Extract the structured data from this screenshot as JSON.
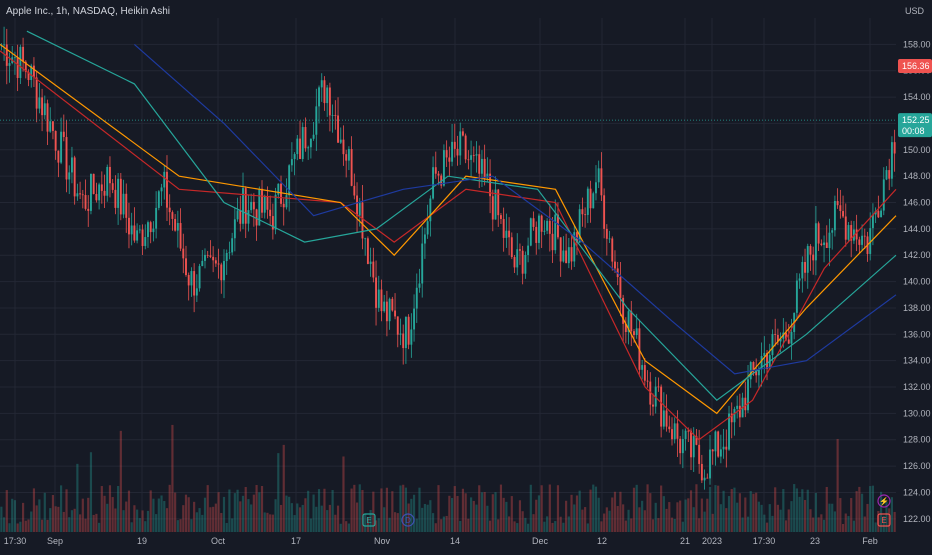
{
  "header": {
    "symbol": "Apple Inc.",
    "interval": "1h",
    "exchange": "NASDAQ",
    "style": "Heikin Ashi"
  },
  "axis": {
    "currency": "USD"
  },
  "colors": {
    "bg": "#161a25",
    "grid": "#232734",
    "up": "#26a69a",
    "down": "#ef5350",
    "ema_red": "#c62828",
    "ema_orange": "#ff9800",
    "ema_teal": "#26a69a",
    "ema_blue": "#1e3a9f"
  },
  "tags": {
    "high_price": "156.36",
    "last_price": "152.25",
    "countdown": "00:08"
  },
  "event_markers": [
    {
      "icon": "earnings-icon",
      "glyph": "E",
      "date": "Oct 27"
    },
    {
      "icon": "dividend-icon",
      "glyph": "D",
      "date": "Nov 4"
    },
    {
      "icon": "lightning-icon",
      "glyph": "⚡",
      "date": "Feb 2"
    },
    {
      "icon": "earnings-icon",
      "glyph": "E",
      "date": "Feb 2"
    }
  ],
  "chart_data": {
    "type": "candlestick",
    "title": "Apple Inc., 1h, NASDAQ, Heikin Ashi",
    "ylim": [
      121,
      160
    ],
    "y_ticks": [
      122,
      124,
      126,
      128,
      130,
      132,
      134,
      136,
      138,
      140,
      142,
      144,
      146,
      148,
      150,
      152,
      154,
      156,
      158
    ],
    "x_ticks": [
      "17:30",
      "Sep",
      "19",
      "Oct",
      "17",
      "Nov",
      "14",
      "Dec",
      "12",
      "21",
      "2023",
      "17:30",
      "23",
      "Feb"
    ],
    "close_path": [
      [
        "Sep",
        158
      ],
      [
        "12",
        156
      ],
      [
        "19",
        151
      ],
      [
        "23",
        146
      ],
      [
        "27",
        148
      ],
      [
        "Oct",
        143
      ],
      [
        "5",
        147
      ],
      [
        "10",
        140
      ],
      [
        "14",
        141
      ],
      [
        "17",
        146
      ],
      [
        "21",
        145
      ],
      [
        "25",
        150
      ],
      [
        "Oct 27",
        155
      ],
      [
        "Nov",
        148
      ],
      [
        "3",
        138
      ],
      [
        "Nov 4",
        136
      ],
      [
        "10",
        148
      ],
      [
        "14",
        150
      ],
      [
        "18",
        147
      ],
      [
        "Dec",
        141
      ],
      [
        "5",
        145
      ],
      [
        "8",
        142
      ],
      [
        "12",
        148
      ],
      [
        "15",
        138
      ],
      [
        "21",
        132
      ],
      [
        "28",
        128
      ],
      [
        "2023",
        126
      ],
      [
        "5",
        129
      ],
      [
        "17:30",
        134
      ],
      [
        "12",
        136
      ],
      [
        "23",
        143
      ],
      [
        "27",
        145
      ],
      [
        "Feb",
        143
      ],
      [
        "Feb 2",
        151
      ]
    ],
    "series": [
      {
        "name": "",
        "color": "#c62828",
        "values": [
          [
            0,
            157.5
          ],
          [
            0.2,
            147
          ],
          [
            0.38,
            146
          ],
          [
            0.44,
            143
          ],
          [
            0.52,
            147
          ],
          [
            0.62,
            146
          ],
          [
            0.72,
            132
          ],
          [
            0.78,
            128
          ],
          [
            0.84,
            131
          ],
          [
            0.92,
            141
          ],
          [
            1.0,
            147
          ]
        ]
      },
      {
        "name": "",
        "color": "#ff9800",
        "values": [
          [
            0,
            158
          ],
          [
            0.2,
            148
          ],
          [
            0.38,
            146
          ],
          [
            0.44,
            142
          ],
          [
            0.52,
            148
          ],
          [
            0.62,
            147
          ],
          [
            0.72,
            134
          ],
          [
            0.8,
            130
          ],
          [
            0.9,
            138
          ],
          [
            1.0,
            145
          ]
        ]
      },
      {
        "name": "",
        "color": "#26a69a",
        "values": [
          [
            0.03,
            159
          ],
          [
            0.15,
            155
          ],
          [
            0.25,
            146
          ],
          [
            0.34,
            143
          ],
          [
            0.42,
            144
          ],
          [
            0.5,
            148
          ],
          [
            0.6,
            147
          ],
          [
            0.7,
            138
          ],
          [
            0.8,
            131
          ],
          [
            0.9,
            136
          ],
          [
            1.0,
            142
          ]
        ]
      },
      {
        "name": "",
        "color": "#1e3a9f",
        "values": [
          [
            0.15,
            158
          ],
          [
            0.25,
            152
          ],
          [
            0.35,
            145
          ],
          [
            0.45,
            147
          ],
          [
            0.55,
            148
          ],
          [
            0.65,
            143
          ],
          [
            0.75,
            137
          ],
          [
            0.82,
            133
          ],
          [
            0.9,
            134
          ],
          [
            1.0,
            139
          ]
        ]
      }
    ],
    "volume": {
      "scale": "relative",
      "relative_max": 1.0
    },
    "last_price": 152.25,
    "high_marker": 156.36,
    "grid": true,
    "legend": "none"
  }
}
